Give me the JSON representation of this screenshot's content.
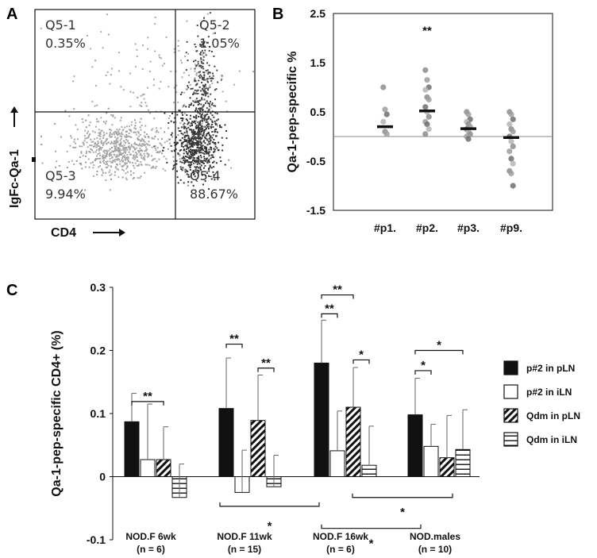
{
  "panel_labels": {
    "a": "A",
    "b": "B",
    "c": "C"
  },
  "chart_data": [
    {
      "id": "A",
      "type": "scatter",
      "subtype": "flow-cytometry-quadrant",
      "xlabel": "CD4",
      "ylabel": "IgFc-Qa-1",
      "quadrants": [
        {
          "name": "Q5-1",
          "percent": "0.35%"
        },
        {
          "name": "Q5-2",
          "percent": "1.05%"
        },
        {
          "name": "Q5-3",
          "percent": "9.94%"
        },
        {
          "name": "Q5-4",
          "percent": "88.67%"
        }
      ],
      "point_color_low": "#a8a8a8",
      "point_color_high": "#333333"
    },
    {
      "id": "B",
      "type": "scatter",
      "ylabel": "Qa-1-pep-specific %",
      "ylim": [
        -1.5,
        2.5
      ],
      "yticks": [
        "2.5",
        "1.5",
        "0.5",
        "-0.5",
        "-1.5"
      ],
      "ytick_values": [
        2.5,
        1.5,
        0.5,
        -0.5,
        -1.5
      ],
      "baseline": 0,
      "categories": [
        "#p1.",
        "#p2.",
        "#p3.",
        "#p9."
      ],
      "means": [
        0.2,
        0.52,
        0.16,
        -0.02
      ],
      "points": [
        [
          1.0,
          0.55,
          0.45,
          0.3,
          0.1,
          0.05
        ],
        [
          1.35,
          1.15,
          1.0,
          0.95,
          0.8,
          0.75,
          0.6,
          0.5,
          0.4,
          0.3,
          0.25,
          0.15,
          0.05
        ],
        [
          0.5,
          0.45,
          0.35,
          0.3,
          0.25,
          0.2,
          0.15,
          0.1,
          0.05,
          0.0,
          -0.05
        ],
        [
          0.5,
          0.45,
          0.35,
          0.25,
          0.15,
          0.1,
          0.0,
          -0.1,
          -0.2,
          -0.3,
          -0.45,
          -0.55,
          -0.7,
          -0.75,
          -1.0
        ]
      ],
      "annotation": {
        "text": "**",
        "category": "#p2.",
        "y": 2.2,
        "color": "#a0a0a0"
      }
    },
    {
      "id": "C",
      "type": "bar",
      "ylabel": "Qa-1-pep-specific CD4+ (%)",
      "ylim": [
        -0.1,
        0.3
      ],
      "yticks": [
        "0.3",
        "0.2",
        "0.1",
        "0",
        "-0.1"
      ],
      "ytick_values": [
        0.3,
        0.2,
        0.1,
        0,
        -0.1
      ],
      "categories": [
        {
          "name": "NOD.F 6wk",
          "n": "(n = 6)"
        },
        {
          "name": "NOD.F 11wk",
          "n": "(n = 15)"
        },
        {
          "name": "NOD.F 16wk",
          "n": "(n = 6)"
        },
        {
          "name": "NOD.males",
          "n": "(n = 10)"
        }
      ],
      "series": [
        {
          "name": "p#2 in pLN",
          "pattern": "solid",
          "values": [
            0.087,
            0.108,
            0.18,
            0.098
          ],
          "errors": [
            0.045,
            0.08,
            0.068,
            0.058
          ]
        },
        {
          "name": "p#2 in iLN",
          "pattern": "open",
          "values": [
            0.027,
            -0.025,
            0.041,
            0.048
          ],
          "errors": [
            0.088,
            0.067,
            0.063,
            0.035
          ]
        },
        {
          "name": "Qdm in pLN",
          "pattern": "diagonal",
          "values": [
            0.027,
            0.089,
            0.11,
            0.03
          ],
          "errors": [
            0.052,
            0.072,
            0.063,
            0.067
          ]
        },
        {
          "name": "Qdm in iLN",
          "pattern": "horizontal",
          "values": [
            -0.033,
            -0.016,
            0.018,
            0.043
          ],
          "errors": [
            0.053,
            0.05,
            0.062,
            0.063
          ]
        }
      ],
      "significance": [
        {
          "text": "**",
          "group": 0,
          "from_series": 0,
          "to_series": 2,
          "y": 0.119
        },
        {
          "text": "**",
          "group": 1,
          "from_series": 0,
          "to_series": 1,
          "y": 0.21
        },
        {
          "text": "**",
          "group": 1,
          "from_series": 2,
          "to_series": 3,
          "y": 0.172
        },
        {
          "text": "**",
          "group": 2,
          "from_series": 0,
          "to_series": 1,
          "y": 0.258
        },
        {
          "text": "**",
          "group": 2,
          "from_series": 0,
          "to_series": 2,
          "y": 0.288
        },
        {
          "text": "*",
          "group": 2,
          "from_series": 2,
          "to_series": 3,
          "y": 0.185
        },
        {
          "text": "*",
          "group": 3,
          "from_series": 0,
          "to_series": 1,
          "y": 0.168
        },
        {
          "text": "*",
          "group": 3,
          "from_series": 0,
          "to_series": 3,
          "y": 0.2
        }
      ],
      "cross_comparisons": [
        {
          "text": "*",
          "label_y": -0.074
        },
        {
          "text": "*",
          "label_y": -0.052
        },
        {
          "text": "*",
          "label_y": -0.102
        }
      ]
    }
  ]
}
